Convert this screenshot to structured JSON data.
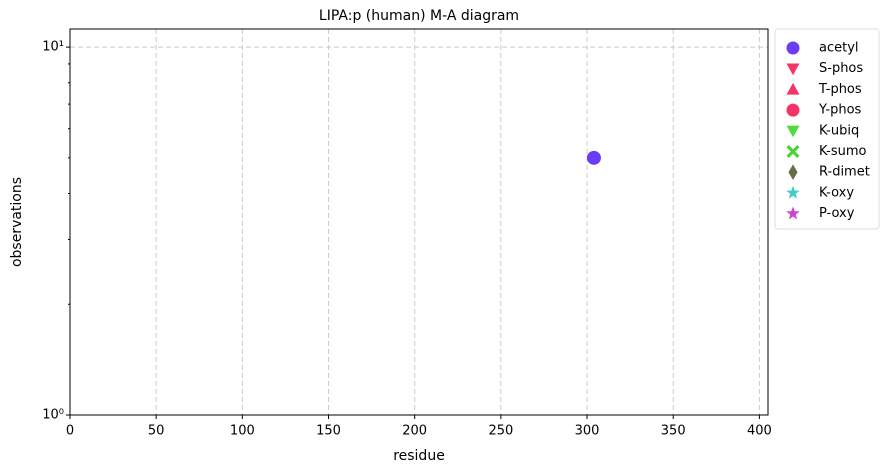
{
  "chart_data": {
    "type": "scatter",
    "title": "LIPA:p (human) M-A diagram",
    "x_label": "residue",
    "y_label": "observations",
    "xlim": [
      0,
      405
    ],
    "xticks": [
      0,
      50,
      100,
      150,
      200,
      250,
      300,
      350,
      400
    ],
    "ylim": [
      1,
      11.2
    ],
    "yscale": "log",
    "yticks": [
      {
        "value": 1,
        "label": "10⁰"
      },
      {
        "value": 10,
        "label": "10¹"
      }
    ],
    "yminor_ticks": [
      2,
      3,
      4,
      5,
      6,
      7,
      8,
      9
    ],
    "grid": true,
    "legend": "outside-right",
    "series": [
      {
        "name": "acetyl",
        "color": "#6a3cf5",
        "marker": "circle",
        "x": [
          304
        ],
        "values": [
          5
        ]
      },
      {
        "name": "S-phos",
        "color": "#f53366",
        "marker": "triangle-down",
        "x": [],
        "values": []
      },
      {
        "name": "T-phos",
        "color": "#f53366",
        "marker": "triangle-up",
        "x": [],
        "values": []
      },
      {
        "name": "Y-phos",
        "color": "#f53366",
        "marker": "circle",
        "x": [],
        "values": []
      },
      {
        "name": "K-ubiq",
        "color": "#4cdd3c",
        "marker": "triangle-down",
        "x": [],
        "values": []
      },
      {
        "name": "K-sumo",
        "color": "#4cd23c",
        "marker": "x",
        "x": [],
        "values": []
      },
      {
        "name": "R-dimet",
        "color": "#6b6b47",
        "marker": "diamond",
        "x": [],
        "values": []
      },
      {
        "name": "K-oxy",
        "color": "#44cccc",
        "marker": "star",
        "x": [],
        "values": []
      },
      {
        "name": "P-oxy",
        "color": "#cc44cc",
        "marker": "star",
        "x": [],
        "values": []
      }
    ]
  }
}
